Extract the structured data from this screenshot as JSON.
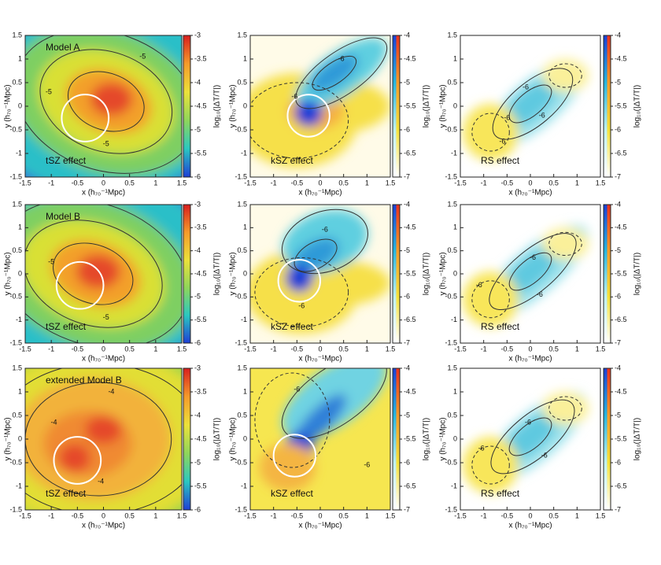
{
  "chart_data": [
    {
      "type": "heatmap",
      "labels": [
        "Model A",
        "tSZ effect"
      ],
      "contour_labels": [
        -5,
        -5,
        -5
      ],
      "xlabel": "x (h₇₀⁻¹Mpc)",
      "ylabel": "y (h₇₀⁻¹Mpc)",
      "colorbar_label": "log₁₀(|ΔT/T|)",
      "xlim": [
        -1.5,
        1.5
      ],
      "ylim": [
        -1.5,
        1.5
      ],
      "xticks": [
        -1.5,
        -1,
        -0.5,
        0,
        0.5,
        1,
        1.5
      ],
      "yticks": [
        -1.5,
        -1,
        -0.5,
        0,
        0.5,
        1,
        1.5
      ],
      "clim": [
        -3,
        -6
      ],
      "cticks": [
        -3,
        -3.5,
        -4,
        -4.5,
        -5,
        -5.5,
        -6
      ],
      "colorbar_colors": [
        [
          "#d81e1e",
          "#f59a2a",
          "#ece13a",
          "#8fd65a",
          "#2bc7c0",
          "#1e3fd6"
        ]
      ]
    },
    {
      "type": "heatmap",
      "labels": [
        "kSZ effect"
      ],
      "contour_labels": [
        -6,
        -6
      ],
      "xlabel": "x (h₇₀⁻¹Mpc)",
      "ylabel": "y (h₇₀⁻¹Mpc)",
      "colorbar_label": "log₁₀(|ΔT/T|)",
      "xlim": [
        -1.5,
        1.5
      ],
      "ylim": [
        -1.5,
        1.5
      ],
      "xticks": [
        -1.5,
        -1,
        -0.5,
        0,
        0.5,
        1,
        1.5
      ],
      "yticks": [
        -1.5,
        -1,
        -0.5,
        0,
        0.5,
        1,
        1.5
      ],
      "clim": [
        -4,
        -7
      ],
      "cticks": [
        -4,
        -4.5,
        -5,
        -5.5,
        -6,
        -6.5,
        -7
      ],
      "colorbar_colors": [
        [
          "#1a3fd6",
          "#25b5e0",
          "#bff0f0",
          "#ffffff"
        ],
        [
          "#e8321e",
          "#f59a2a",
          "#f5e23a",
          "#ffffff"
        ]
      ]
    },
    {
      "type": "heatmap",
      "labels": [
        "RS effect"
      ],
      "contour_labels": [
        -6,
        -6,
        -6,
        -6
      ],
      "xlabel": "x (h₇₀⁻¹Mpc)",
      "ylabel": "y (h₇₀⁻¹Mpc)",
      "colorbar_label": "log₁₀(|ΔT/T|)",
      "xlim": [
        -1.5,
        1.5
      ],
      "ylim": [
        -1.5,
        1.5
      ],
      "xticks": [
        -1.5,
        -1,
        -0.5,
        0,
        0.5,
        1,
        1.5
      ],
      "yticks": [
        -1.5,
        -1,
        -0.5,
        0,
        0.5,
        1,
        1.5
      ],
      "clim": [
        -4,
        -7
      ],
      "cticks": [
        -4,
        -4.5,
        -5,
        -5.5,
        -6,
        -6.5,
        -7
      ],
      "colorbar_colors": [
        [
          "#1a3fd6",
          "#25b5e0",
          "#bff0f0",
          "#ffffff"
        ],
        [
          "#e8321e",
          "#f59a2a",
          "#f5e23a",
          "#ffffff"
        ]
      ]
    },
    {
      "type": "heatmap",
      "labels": [
        "Model B",
        "tSZ effect"
      ],
      "contour_labels": [
        -5,
        -5
      ],
      "xlabel": "x (h₇₀⁻¹Mpc)",
      "ylabel": "y (h₇₀⁻¹Mpc)",
      "colorbar_label": "log₁₀(|ΔT/T|)",
      "xlim": [
        -1.5,
        1.5
      ],
      "ylim": [
        -1.5,
        1.5
      ],
      "xticks": [
        -1.5,
        -1,
        -0.5,
        0,
        0.5,
        1,
        1.5
      ],
      "yticks": [
        -1.5,
        -1,
        -0.5,
        0,
        0.5,
        1,
        1.5
      ],
      "clim": [
        -3,
        -6
      ],
      "cticks": [
        -3,
        -3.5,
        -4,
        -4.5,
        -5,
        -5.5,
        -6
      ],
      "colorbar_colors": [
        [
          "#d81e1e",
          "#f59a2a",
          "#ece13a",
          "#8fd65a",
          "#2bc7c0",
          "#1e3fd6"
        ]
      ]
    },
    {
      "type": "heatmap",
      "labels": [
        "kSZ effect"
      ],
      "contour_labels": [
        -6,
        -6
      ],
      "xlabel": "x (h₇₀⁻¹Mpc)",
      "ylabel": "y (h₇₀⁻¹Mpc)",
      "colorbar_label": "log₁₀(|ΔT/T|)",
      "xlim": [
        -1.5,
        1.5
      ],
      "ylim": [
        -1.5,
        1.5
      ],
      "xticks": [
        -1.5,
        -1,
        -0.5,
        0,
        0.5,
        1,
        1.5
      ],
      "yticks": [
        -1.5,
        -1,
        -0.5,
        0,
        0.5,
        1,
        1.5
      ],
      "clim": [
        -4,
        -7
      ],
      "cticks": [
        -4,
        -4.5,
        -5,
        -5.5,
        -6,
        -6.5,
        -7
      ],
      "colorbar_colors": [
        [
          "#1a3fd6",
          "#25b5e0",
          "#bff0f0",
          "#ffffff"
        ],
        [
          "#e8321e",
          "#f59a2a",
          "#f5e23a",
          "#ffffff"
        ]
      ]
    },
    {
      "type": "heatmap",
      "labels": [
        "RS effect"
      ],
      "contour_labels": [
        -6,
        -6,
        -6
      ],
      "xlabel": "x (h₇₀⁻¹Mpc)",
      "ylabel": "y (h₇₀⁻¹Mpc)",
      "colorbar_label": "log₁₀(|ΔT/T|)",
      "xlim": [
        -1.5,
        1.5
      ],
      "ylim": [
        -1.5,
        1.5
      ],
      "xticks": [
        -1.5,
        -1,
        -0.5,
        0,
        0.5,
        1,
        1.5
      ],
      "yticks": [
        -1.5,
        -1,
        -0.5,
        0,
        0.5,
        1,
        1.5
      ],
      "clim": [
        -4,
        -7
      ],
      "cticks": [
        -4,
        -4.5,
        -5,
        -5.5,
        -6,
        -6.5,
        -7
      ],
      "colorbar_colors": [
        [
          "#1a3fd6",
          "#25b5e0",
          "#bff0f0",
          "#ffffff"
        ],
        [
          "#e8321e",
          "#f59a2a",
          "#f5e23a",
          "#ffffff"
        ]
      ]
    },
    {
      "type": "heatmap",
      "labels": [
        "extended Model B",
        "tSZ effect"
      ],
      "contour_labels": [
        -4,
        -4,
        -4
      ],
      "xlabel": "x (h₇₀⁻¹Mpc)",
      "ylabel": "y (h₇₀⁻¹Mpc)",
      "colorbar_label": "log₁₀(|ΔT/T|)",
      "xlim": [
        -1.5,
        1.5
      ],
      "ylim": [
        -1.5,
        1.5
      ],
      "xticks": [
        -1.5,
        -1,
        -0.5,
        0,
        0.5,
        1,
        1.5
      ],
      "yticks": [
        -1.5,
        -1,
        -0.5,
        0,
        0.5,
        1,
        1.5
      ],
      "clim": [
        -3,
        -6
      ],
      "cticks": [
        -3,
        -3.5,
        -4,
        -4.5,
        -5,
        -5.5,
        -6
      ],
      "colorbar_colors": [
        [
          "#d81e1e",
          "#f59a2a",
          "#ece13a",
          "#8fd65a",
          "#2bc7c0",
          "#1e3fd6"
        ]
      ]
    },
    {
      "type": "heatmap",
      "labels": [
        "kSZ effect"
      ],
      "contour_labels": [
        -6,
        -6
      ],
      "xlabel": "x (h₇₀⁻¹Mpc)",
      "ylabel": "y (h₇₀⁻¹Mpc)",
      "colorbar_label": "log₁₀(|ΔT/T|)",
      "xlim": [
        -1.5,
        1.5
      ],
      "ylim": [
        -1.5,
        1.5
      ],
      "xticks": [
        -1.5,
        -1,
        -0.5,
        0,
        0.5,
        1,
        1.5
      ],
      "yticks": [
        -1.5,
        -1,
        -0.5,
        0,
        0.5,
        1,
        1.5
      ],
      "clim": [
        -4,
        -7
      ],
      "cticks": [
        -4,
        -4.5,
        -5,
        -5.5,
        -6,
        -6.5,
        -7
      ],
      "colorbar_colors": [
        [
          "#1a3fd6",
          "#25b5e0",
          "#bff0f0",
          "#ffffff"
        ],
        [
          "#e8321e",
          "#f59a2a",
          "#f5e23a",
          "#ffffff"
        ]
      ]
    },
    {
      "type": "heatmap",
      "labels": [
        "RS effect"
      ],
      "contour_labels": [
        -6,
        -6,
        -6
      ],
      "xlabel": "x (h₇₀⁻¹Mpc)",
      "ylabel": "y (h₇₀⁻¹Mpc)",
      "colorbar_label": "log₁₀(|ΔT/T|)",
      "xlim": [
        -1.5,
        1.5
      ],
      "ylim": [
        -1.5,
        1.5
      ],
      "xticks": [
        -1.5,
        -1,
        -0.5,
        0,
        0.5,
        1,
        1.5
      ],
      "yticks": [
        -1.5,
        -1,
        -0.5,
        0,
        0.5,
        1,
        1.5
      ],
      "clim": [
        -4,
        -7
      ],
      "cticks": [
        -4,
        -4.5,
        -5,
        -5.5,
        -6,
        -6.5,
        -7
      ],
      "colorbar_colors": [
        [
          "#1a3fd6",
          "#25b5e0",
          "#bff0f0",
          "#ffffff"
        ],
        [
          "#e8321e",
          "#f59a2a",
          "#f5e23a",
          "#ffffff"
        ]
      ]
    }
  ]
}
